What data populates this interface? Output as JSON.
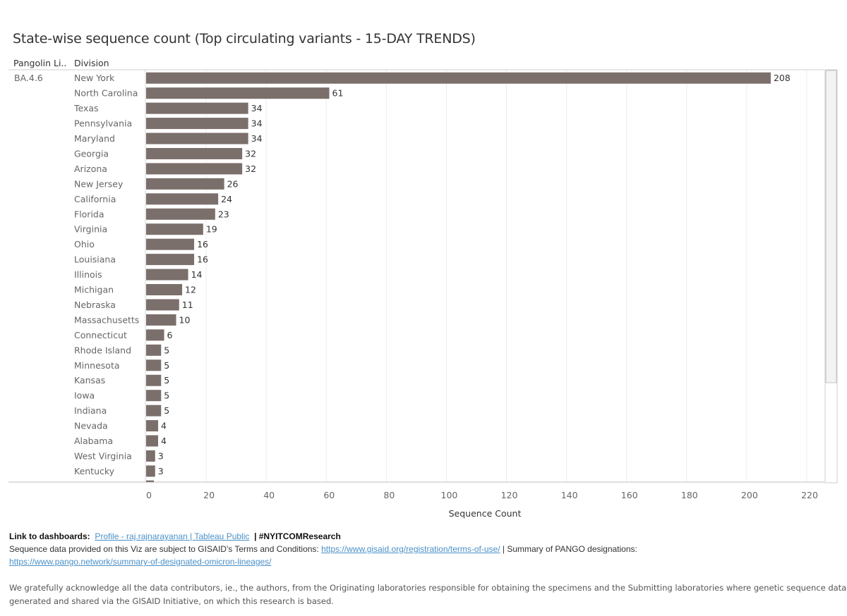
{
  "title": "State-wise sequence count (Top circulating variants - 15-DAY TRENDS)",
  "headers": {
    "lineage": "Pangolin Li..",
    "division": "Division"
  },
  "chart_data": {
    "type": "bar",
    "orientation": "horizontal",
    "lineage": "BA.4.6",
    "categories": [
      "New York",
      "North Carolina",
      "Texas",
      "Pennsylvania",
      "Maryland",
      "Georgia",
      "Arizona",
      "New Jersey",
      "California",
      "Florida",
      "Virginia",
      "Ohio",
      "Louisiana",
      "Illinois",
      "Michigan",
      "Nebraska",
      "Massachusetts",
      "Connecticut",
      "Rhode Island",
      "Minnesota",
      "Kansas",
      "Iowa",
      "Indiana",
      "Nevada",
      "Alabama",
      "West Virginia",
      "Kentucky"
    ],
    "values": [
      208,
      61,
      34,
      34,
      34,
      32,
      32,
      26,
      24,
      23,
      19,
      16,
      16,
      14,
      12,
      11,
      10,
      6,
      5,
      5,
      5,
      5,
      5,
      4,
      4,
      3,
      3
    ],
    "xlabel": "Sequence Count",
    "xlim": [
      0,
      220
    ],
    "xticks": [
      0,
      20,
      40,
      60,
      80,
      100,
      120,
      140,
      160,
      180,
      200,
      220
    ],
    "bar_color": "#7b6f6c"
  },
  "footer": {
    "link_label": "Link to dashboards:",
    "link_text": "Profile - raj.rajnarayanan | Tableau Public",
    "hashtag": "| #NYITCOMResearch",
    "terms_prefix": "Sequence data provided on this Viz are subject to GISAID's Terms and Conditions:",
    "terms_url": "https://www.gisaid.org/registration/terms-of-use/",
    "pango_prefix": "| Summary of PANGO designations:",
    "pango_url": "https://www.pango.network/summary-of-designated-omicron-lineages/",
    "ack_line1": "We gratefully acknowledge all the data contributors, ie., the authors, from the Originating laboratories responsible for obtaining the specimens and the Submitting laboratories where genetic sequence data were",
    "ack_line2": "generated and shared via the GISAID Initiative, on which this research is based."
  }
}
